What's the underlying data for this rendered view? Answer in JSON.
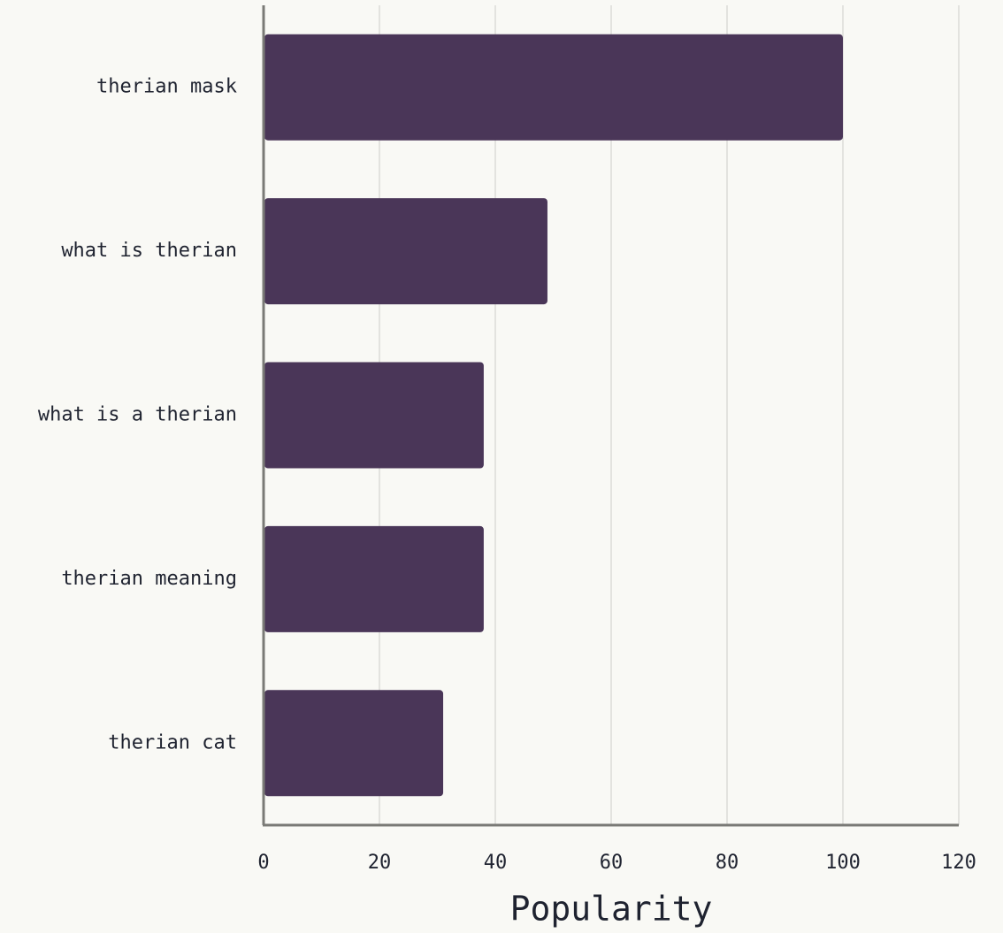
{
  "chart_data": {
    "type": "bar",
    "orientation": "horizontal",
    "categories": [
      "therian mask",
      "what is therian",
      "what is a therian",
      "therian meaning",
      "therian cat"
    ],
    "values": [
      100,
      49,
      38,
      38,
      31
    ],
    "title": "",
    "xlabel": "Popularity",
    "ylabel": "",
    "xlim": [
      0,
      120
    ],
    "xticks": [
      0,
      20,
      40,
      60,
      80,
      100,
      120
    ],
    "grid": "vertical",
    "colors": {
      "bar": "#4a3658",
      "grid": "#dcdcd8",
      "axis": "#7a7a76",
      "text": "#1f2330",
      "background": "#f9f9f5"
    }
  }
}
